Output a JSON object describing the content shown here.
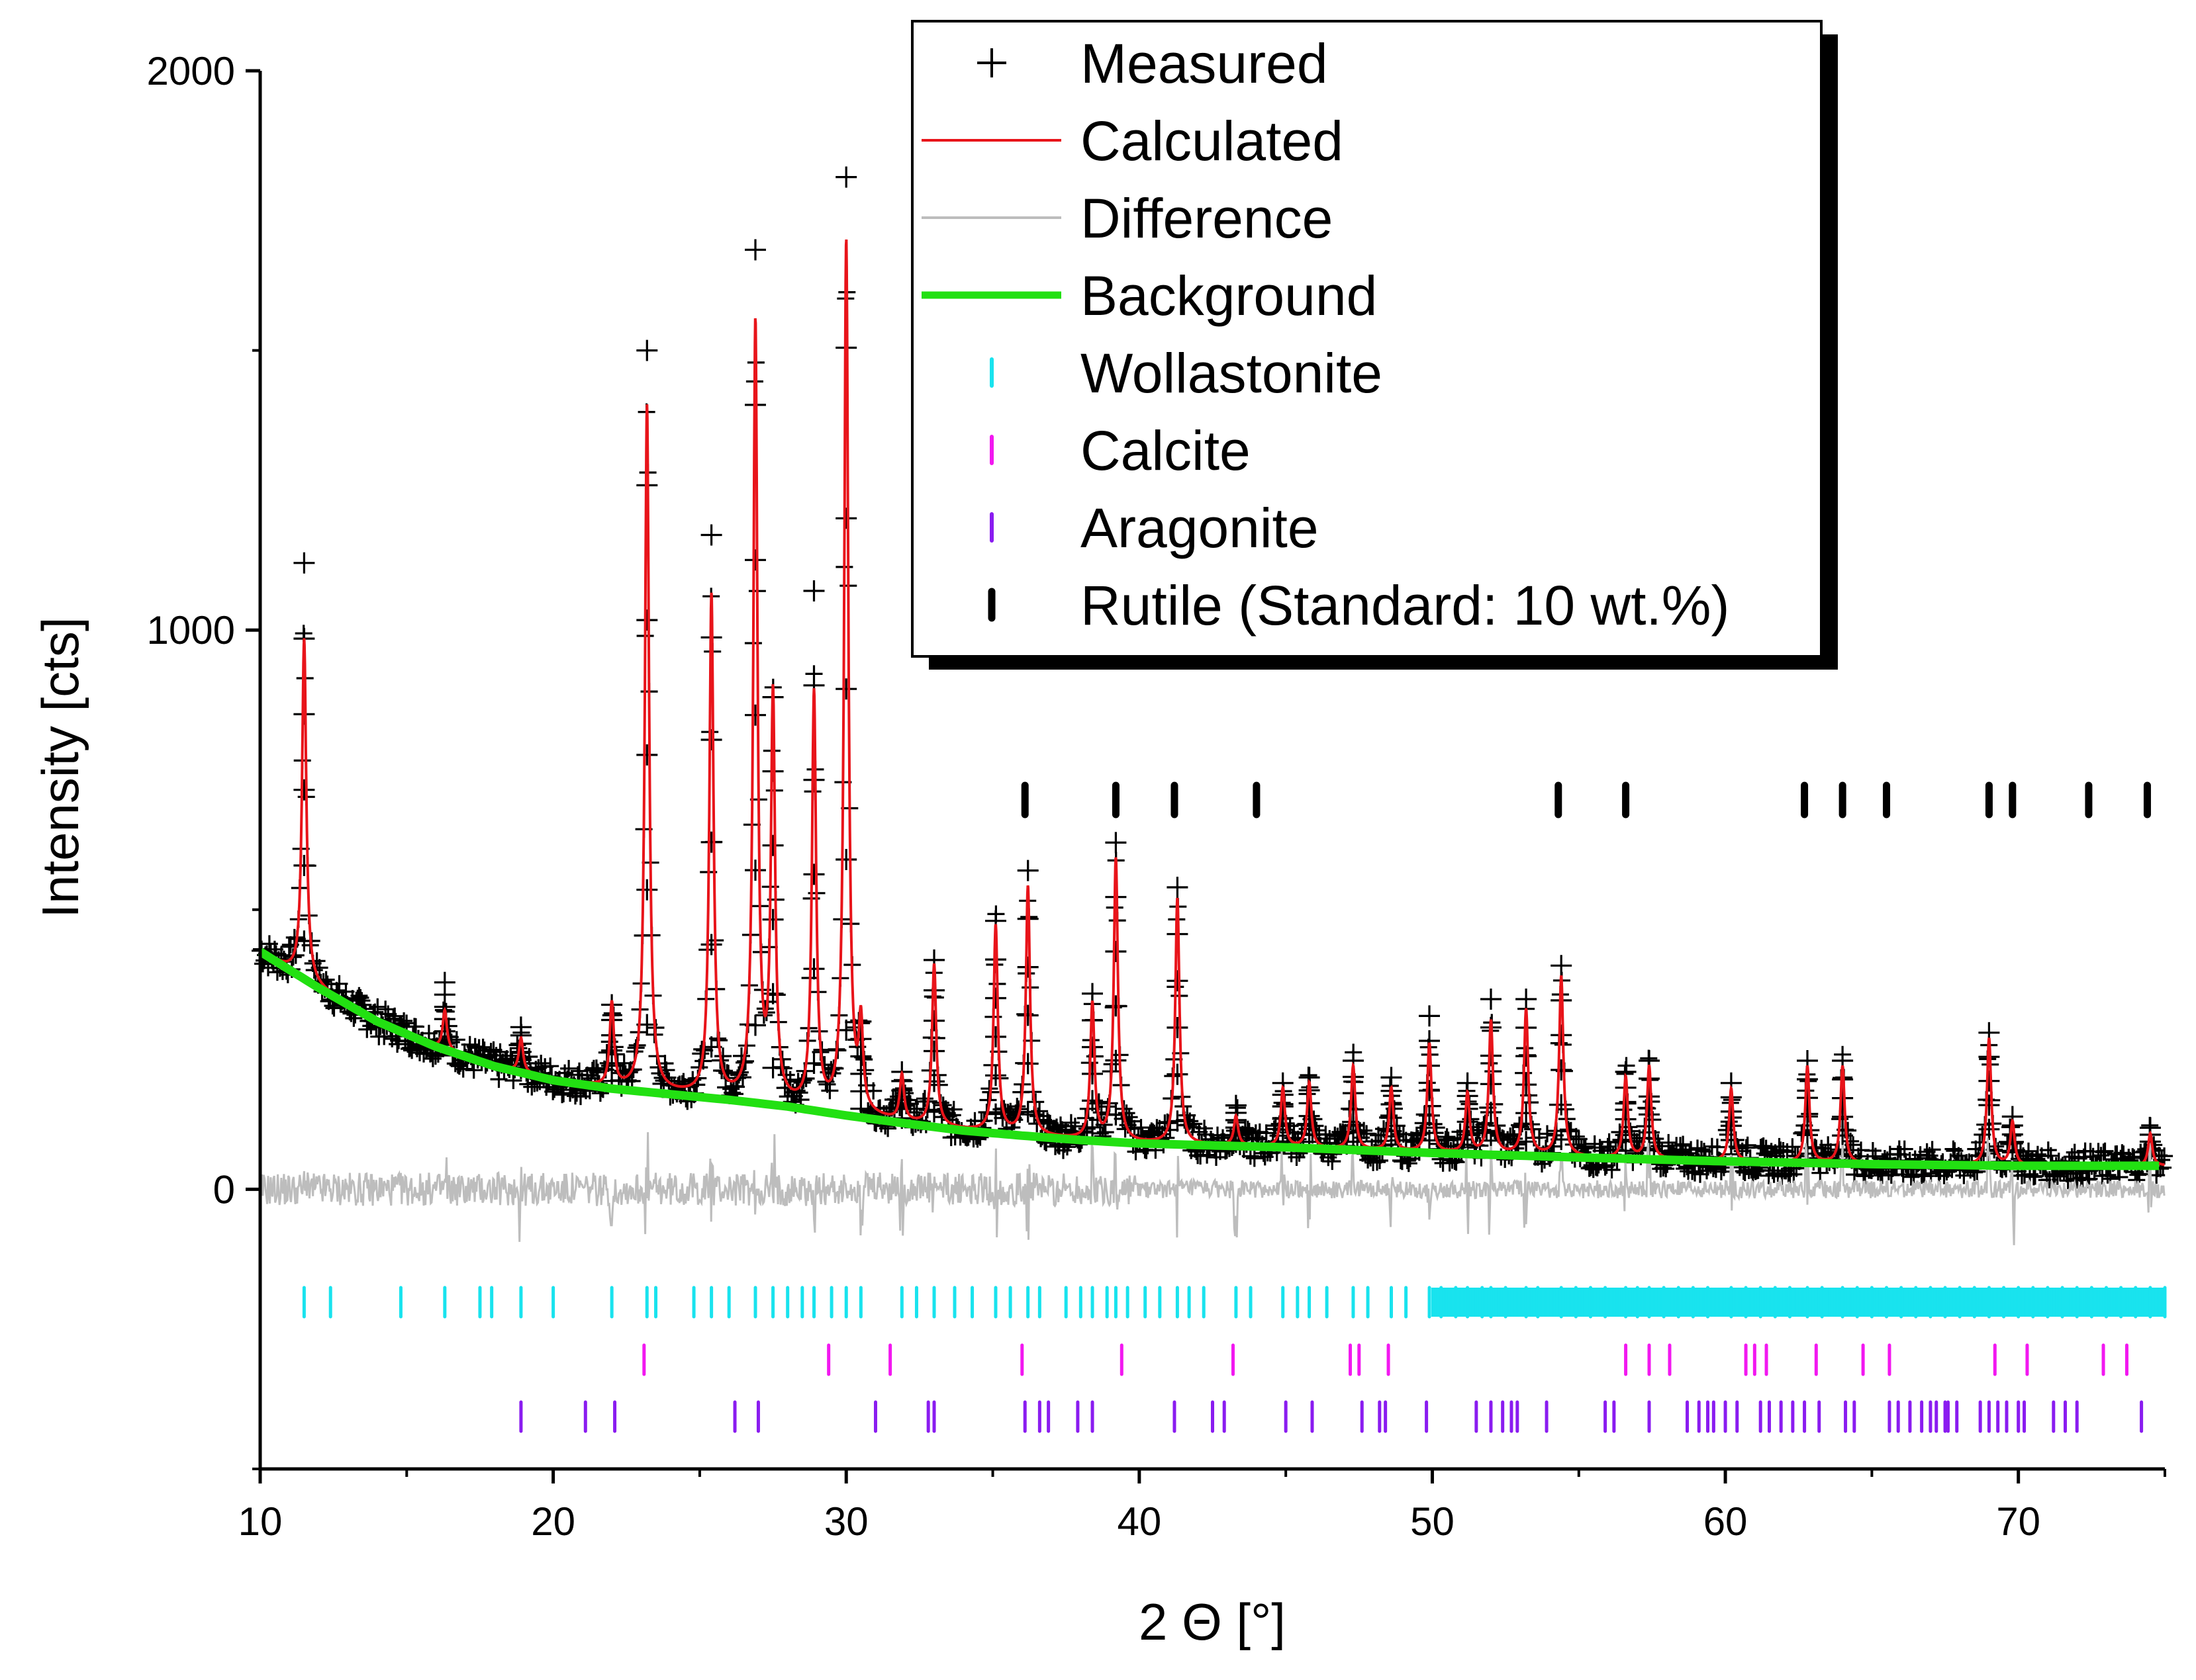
{
  "chart_data": {
    "type": "line",
    "xlabel": "2 Θ [°]",
    "ylabel": "Intensity [cts]",
    "xlim": [
      10,
      75
    ],
    "ylim": [
      -500,
      2000
    ],
    "x_ticks": [
      "10",
      "20",
      "30",
      "40",
      "50",
      "60",
      "70"
    ],
    "y_ticks": [
      "0",
      "1000",
      "2000"
    ],
    "grid": false,
    "legend_position": "top-right",
    "legend": [
      {
        "label": "Measured",
        "symbol": "plus",
        "color": "#000000"
      },
      {
        "label": "Calculated",
        "symbol": "line",
        "color": "#e8141a"
      },
      {
        "label": "Difference",
        "symbol": "line",
        "color": "#bdbdbd"
      },
      {
        "label": "Background",
        "symbol": "thick-line",
        "color": "#22e012"
      },
      {
        "label": "Wollastonite",
        "symbol": "tick",
        "color": "#19e3ee"
      },
      {
        "label": "Calcite",
        "symbol": "tick",
        "color": "#f218f0"
      },
      {
        "label": "Aragonite",
        "symbol": "tick",
        "color": "#8a1cf0"
      },
      {
        "label": "Rutile (Standard: 10 wt.%)",
        "symbol": "thick-tick",
        "color": "#000000"
      }
    ],
    "background": {
      "x": [
        10,
        12,
        14,
        16,
        18,
        20,
        22,
        24,
        26,
        28,
        30,
        32,
        34,
        36,
        38,
        40,
        45,
        50,
        55,
        60,
        65,
        70,
        75
      ],
      "y": [
        425,
        360,
        300,
        255,
        220,
        195,
        180,
        170,
        160,
        148,
        132,
        118,
        105,
        96,
        88,
        82,
        75,
        65,
        57,
        50,
        45,
        42,
        42
      ]
    },
    "peaks": [
      {
        "x": 11.5,
        "calc": 985,
        "measured": 1120
      },
      {
        "x": 16.3,
        "calc": 320,
        "measured": 370
      },
      {
        "x": 18.9,
        "calc": 270,
        "measured": 290
      },
      {
        "x": 22.0,
        "calc": 330,
        "measured": 330
      },
      {
        "x": 23.2,
        "calc": 1400,
        "measured": 1500
      },
      {
        "x": 25.4,
        "calc": 1060,
        "measured": 1170
      },
      {
        "x": 26.9,
        "calc": 1540,
        "measured": 1680
      },
      {
        "x": 27.5,
        "calc": 870,
        "measured": 880
      },
      {
        "x": 28.9,
        "calc": 880,
        "measured": 1070
      },
      {
        "x": 30.0,
        "calc": 1690,
        "measured": 1810
      },
      {
        "x": 30.5,
        "calc": 280,
        "measured": 300
      },
      {
        "x": 31.9,
        "calc": 200,
        "measured": 210
      },
      {
        "x": 33.0,
        "calc": 400,
        "measured": 410
      },
      {
        "x": 35.1,
        "calc": 470,
        "measured": 480
      },
      {
        "x": 36.2,
        "calc": 540,
        "measured": 570
      },
      {
        "x": 38.4,
        "calc": 330,
        "measured": 350
      },
      {
        "x": 39.2,
        "calc": 590,
        "measured": 620
      },
      {
        "x": 41.3,
        "calc": 520,
        "measured": 540
      },
      {
        "x": 43.3,
        "calc": 130,
        "measured": 150
      },
      {
        "x": 44.9,
        "calc": 180,
        "measured": 190
      },
      {
        "x": 45.8,
        "calc": 190,
        "measured": 200
      },
      {
        "x": 47.3,
        "calc": 220,
        "measured": 230
      },
      {
        "x": 48.6,
        "calc": 180,
        "measured": 200
      },
      {
        "x": 49.9,
        "calc": 260,
        "measured": 310
      },
      {
        "x": 51.2,
        "calc": 170,
        "measured": 190
      },
      {
        "x": 52.0,
        "calc": 300,
        "measured": 340
      },
      {
        "x": 53.2,
        "calc": 320,
        "measured": 340
      },
      {
        "x": 54.4,
        "calc": 380,
        "measured": 400
      },
      {
        "x": 56.6,
        "calc": 200,
        "measured": 210
      },
      {
        "x": 57.4,
        "calc": 220,
        "measured": 230
      },
      {
        "x": 60.2,
        "calc": 180,
        "measured": 190
      },
      {
        "x": 62.8,
        "calc": 220,
        "measured": 230
      },
      {
        "x": 64.0,
        "calc": 220,
        "measured": 230
      },
      {
        "x": 69.0,
        "calc": 270,
        "measured": 280
      },
      {
        "x": 69.8,
        "calc": 120,
        "measured": 130
      },
      {
        "x": 74.5,
        "calc": 100,
        "measured": 110
      }
    ],
    "reflection_ticks": {
      "Wollastonite": [
        11.5,
        12.4,
        14.8,
        16.3,
        17.5,
        17.9,
        18.9,
        20.0,
        22.0,
        23.2,
        23.5,
        24.8,
        25.4,
        26.0,
        26.9,
        27.5,
        28.0,
        28.5,
        28.9,
        29.5,
        30.0,
        30.5,
        31.9,
        32.4,
        33.0,
        33.7,
        34.3,
        35.1,
        35.6,
        36.2,
        36.6,
        37.5,
        38.0,
        38.4,
        38.9,
        39.2,
        39.6,
        40.2,
        40.7,
        41.3,
        41.7,
        42.2,
        43.3,
        43.8,
        44.9,
        45.4,
        45.8,
        46.4,
        47.3,
        47.8,
        48.6,
        49.1,
        49.9,
        50.3,
        50.8,
        51.2,
        51.7,
        52.0,
        52.5,
        53.2,
        53.6,
        54.4,
        54.9,
        55.4,
        55.9,
        56.6,
        57.0,
        57.4,
        57.9,
        58.4,
        58.9,
        59.4,
        60.2,
        60.7,
        61.2,
        61.7,
        62.2,
        62.8,
        63.3,
        64.0,
        64.5,
        65.0,
        65.5,
        66.0,
        66.5,
        67.0,
        67.5,
        68.0,
        68.5,
        69.0,
        69.5,
        70.0,
        70.5,
        71.0,
        71.5,
        72.0,
        72.5,
        73.0,
        73.5,
        74.0,
        74.5,
        75.0
      ],
      "Calcite": [
        23.1,
        29.4,
        31.5,
        36.0,
        39.4,
        43.2,
        47.2,
        47.5,
        48.5,
        56.6,
        57.4,
        58.1,
        60.7,
        61.0,
        61.4,
        63.1,
        64.7,
        65.6,
        69.2,
        70.3,
        72.9,
        73.7
      ],
      "Aragonite": [
        18.9,
        21.1,
        22.1,
        26.2,
        27.0,
        31.0,
        32.8,
        33.0,
        36.1,
        36.6,
        36.9,
        37.9,
        38.4,
        41.2,
        42.5,
        42.9,
        45.0,
        45.9,
        47.6,
        48.2,
        48.4,
        49.8,
        51.5,
        52.0,
        52.4,
        52.7,
        52.9,
        53.9,
        55.9,
        56.2,
        57.4,
        58.7,
        59.1,
        59.4,
        59.6,
        60.0,
        60.4,
        61.2,
        61.5,
        61.9,
        62.3,
        62.7,
        63.2,
        64.1,
        64.4,
        65.6,
        65.9,
        66.3,
        66.7,
        67.0,
        67.2,
        67.5,
        67.6,
        67.9,
        68.7,
        69.0,
        69.3,
        69.6,
        70.0,
        70.2,
        71.2,
        71.6,
        72.0,
        74.2
      ],
      "Rutile (Standard: 10 wt.%)": [
        36.1,
        39.2,
        41.2,
        44.0,
        54.3,
        56.6,
        62.7,
        64.0,
        65.5,
        69.0,
        69.8,
        72.4,
        74.4
      ]
    }
  }
}
